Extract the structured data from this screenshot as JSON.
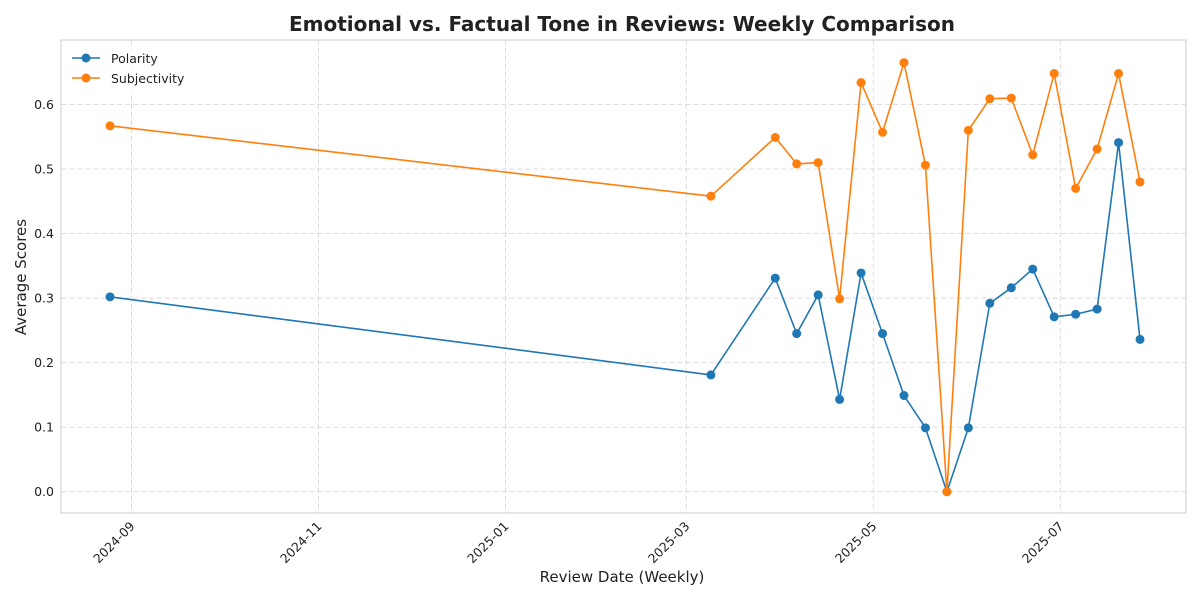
{
  "chart_data": {
    "type": "line",
    "title": "Emotional vs. Factual Tone in Reviews: Weekly Comparison",
    "xlabel": "Review Date (Weekly)",
    "ylabel": "Average Scores",
    "x_ticks": [
      "2024-09",
      "2024-11",
      "2025-01",
      "2025-03",
      "2025-05",
      "2025-07"
    ],
    "y_ticks": [
      "0.0",
      "0.1",
      "0.2",
      "0.3",
      "0.4",
      "0.5",
      "0.6"
    ],
    "ylim": [
      -0.033,
      0.7
    ],
    "xlim": [
      "2024-08-09",
      "2025-08-11"
    ],
    "grid": true,
    "legend_position": "top-left",
    "x": [
      "2024-08-25",
      "2025-03-09",
      "2025-03-30",
      "2025-04-06",
      "2025-04-13",
      "2025-04-20",
      "2025-04-27",
      "2025-05-04",
      "2025-05-11",
      "2025-05-18",
      "2025-05-25",
      "2025-06-01",
      "2025-06-08",
      "2025-06-15",
      "2025-06-22",
      "2025-06-29",
      "2025-07-06",
      "2025-07-13",
      "2025-07-20",
      "2025-07-27"
    ],
    "series": [
      {
        "name": "Polarity",
        "color": "#1f77b4",
        "values": [
          0.302,
          0.181,
          0.331,
          0.245,
          0.305,
          0.143,
          0.339,
          0.245,
          0.149,
          0.099,
          0.0,
          0.099,
          0.292,
          0.316,
          0.345,
          0.271,
          0.275,
          0.283,
          0.541,
          0.236
        ]
      },
      {
        "name": "Subjectivity",
        "color": "#ff7f0e",
        "values": [
          0.567,
          0.458,
          0.549,
          0.508,
          0.51,
          0.299,
          0.634,
          0.557,
          0.665,
          0.506,
          0.0,
          0.56,
          0.609,
          0.61,
          0.522,
          0.648,
          0.47,
          0.531,
          0.648,
          0.48
        ]
      }
    ]
  }
}
